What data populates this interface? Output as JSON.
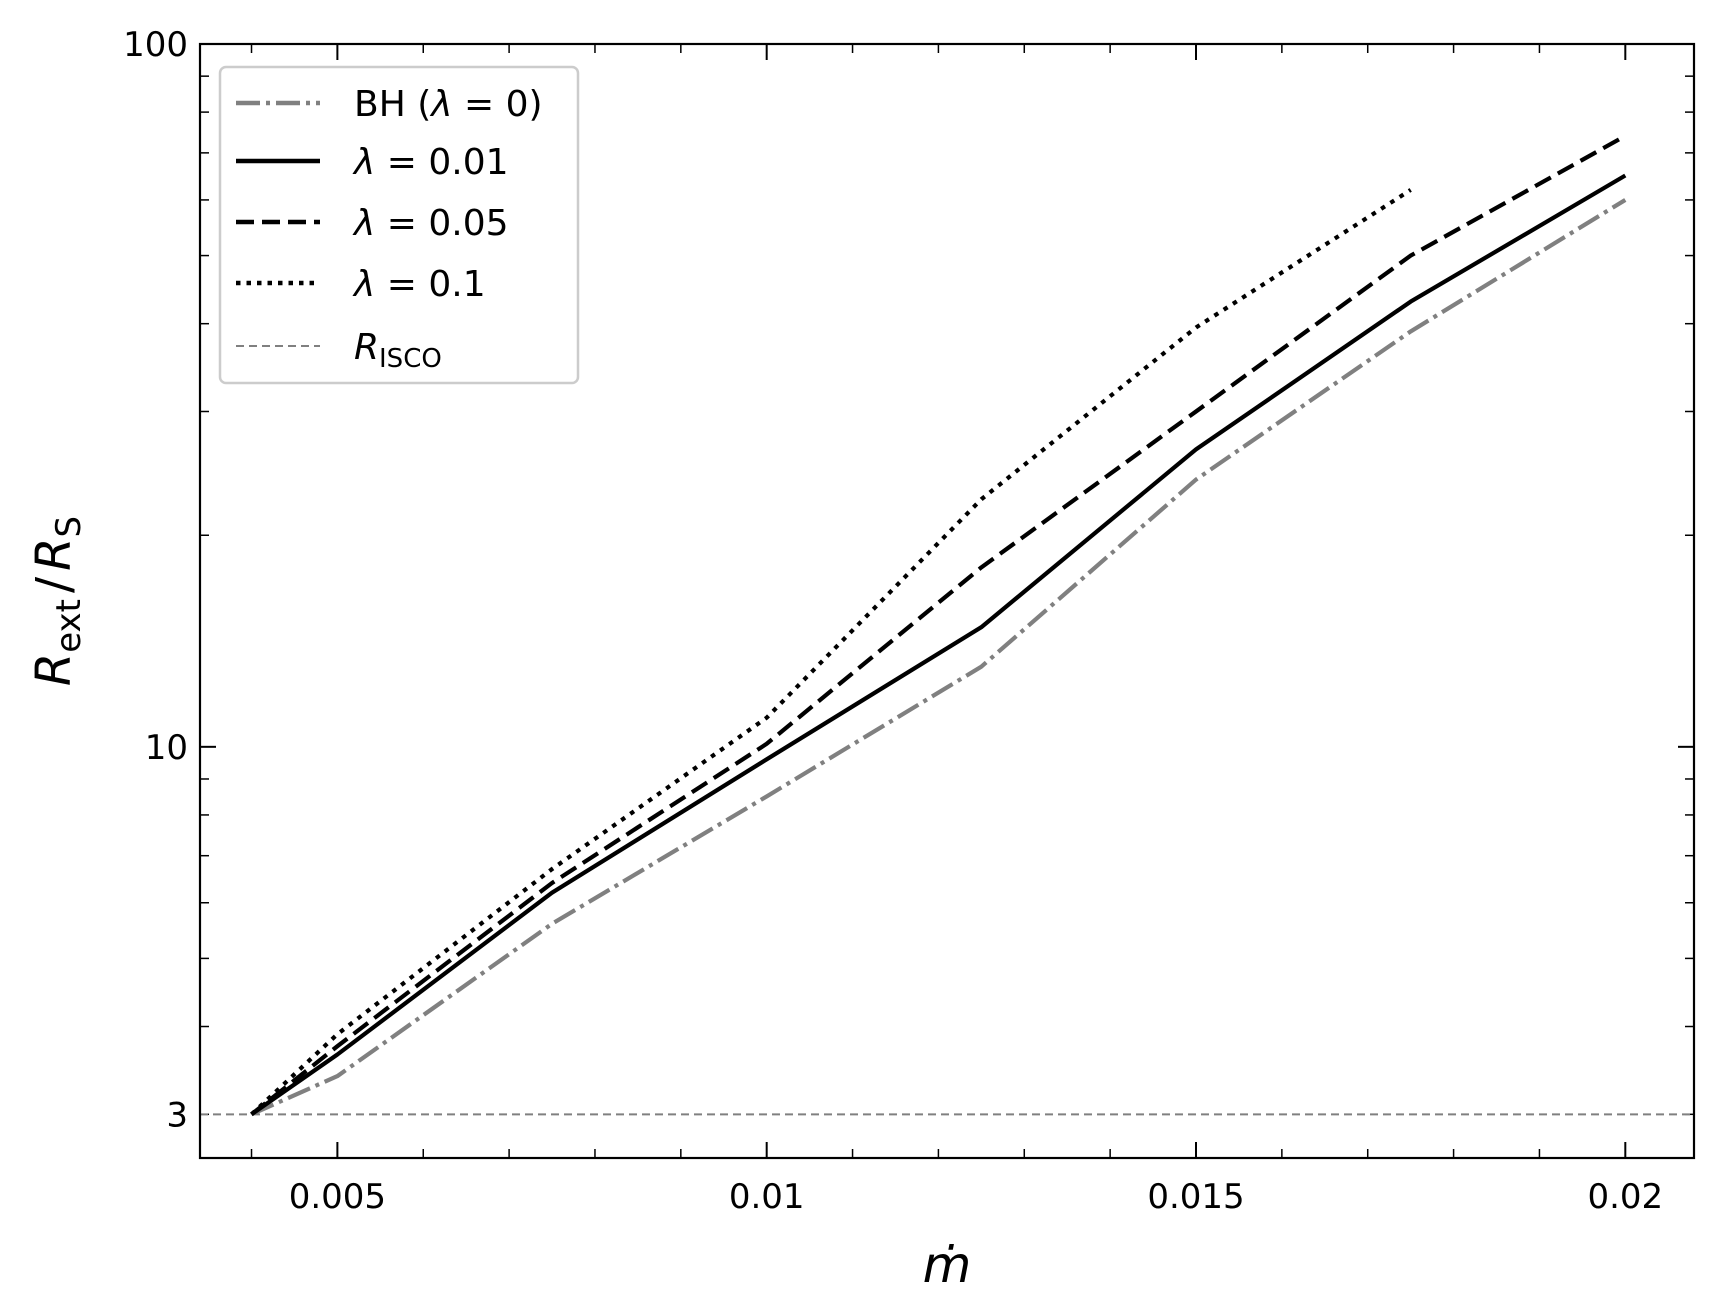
{
  "chart_data": {
    "type": "line",
    "xlabel": "ṁ",
    "ylabel": {
      "main": "R",
      "sub1": "ext",
      "sep": "/",
      "main2": "R",
      "sub2": "S"
    },
    "xlim": [
      0.0034,
      0.0208
    ],
    "ylim": [
      2.6,
      100
    ],
    "yscale": "log",
    "xticks": [
      {
        "value": 0.005,
        "label": "0.005"
      },
      {
        "value": 0.01,
        "label": "0.01"
      },
      {
        "value": 0.015,
        "label": "0.015"
      },
      {
        "value": 0.02,
        "label": "0.02"
      }
    ],
    "yticks": [
      {
        "value": 3,
        "label": "3"
      },
      {
        "value": 10,
        "label": "10"
      },
      {
        "value": 100,
        "label": "100"
      }
    ],
    "legend_position": "top-left",
    "series": [
      {
        "name": "BH (λ = 0)",
        "legend": {
          "main": "BH (",
          "sym": "λ",
          "rest": " = 0)"
        },
        "color": "#808080",
        "dash": "dashdot",
        "x": [
          0.004,
          0.005,
          0.0075,
          0.01,
          0.0125,
          0.015,
          0.0175,
          0.02
        ],
        "y": [
          3.0,
          3.4,
          5.6,
          8.5,
          13.0,
          24.0,
          39.0,
          60.0
        ]
      },
      {
        "name": "λ = 0.01",
        "legend": {
          "main": "",
          "sym": "λ",
          "rest": " = 0.01"
        },
        "color": "#000000",
        "dash": "solid",
        "x": [
          0.004,
          0.005,
          0.0075,
          0.01,
          0.0125,
          0.015,
          0.0175,
          0.02
        ],
        "y": [
          3.0,
          3.65,
          6.2,
          9.6,
          14.8,
          26.5,
          43.0,
          65.0
        ]
      },
      {
        "name": "λ = 0.05",
        "legend": {
          "main": "",
          "sym": "λ",
          "rest": " = 0.05"
        },
        "color": "#000000",
        "dash": "dashed",
        "x": [
          0.004,
          0.005,
          0.0075,
          0.01,
          0.0125,
          0.015,
          0.0175,
          0.02
        ],
        "y": [
          3.0,
          3.75,
          6.4,
          10.1,
          18.0,
          30.0,
          50.0,
          74.0
        ]
      },
      {
        "name": "λ = 0.1",
        "legend": {
          "main": "",
          "sym": "λ",
          "rest": " = 0.1"
        },
        "color": "#000000",
        "dash": "dotted",
        "x": [
          0.004,
          0.005,
          0.0075,
          0.01,
          0.0125,
          0.015,
          0.0175
        ],
        "y": [
          3.0,
          3.9,
          6.7,
          11.0,
          22.5,
          39.5,
          62.0
        ]
      }
    ],
    "reference_lines": [
      {
        "name": "R_ISCO",
        "legend": {
          "main": "R",
          "sub": "ISCO"
        },
        "y": 3.0,
        "color": "#808080",
        "dash": "thin-dashed"
      }
    ]
  }
}
